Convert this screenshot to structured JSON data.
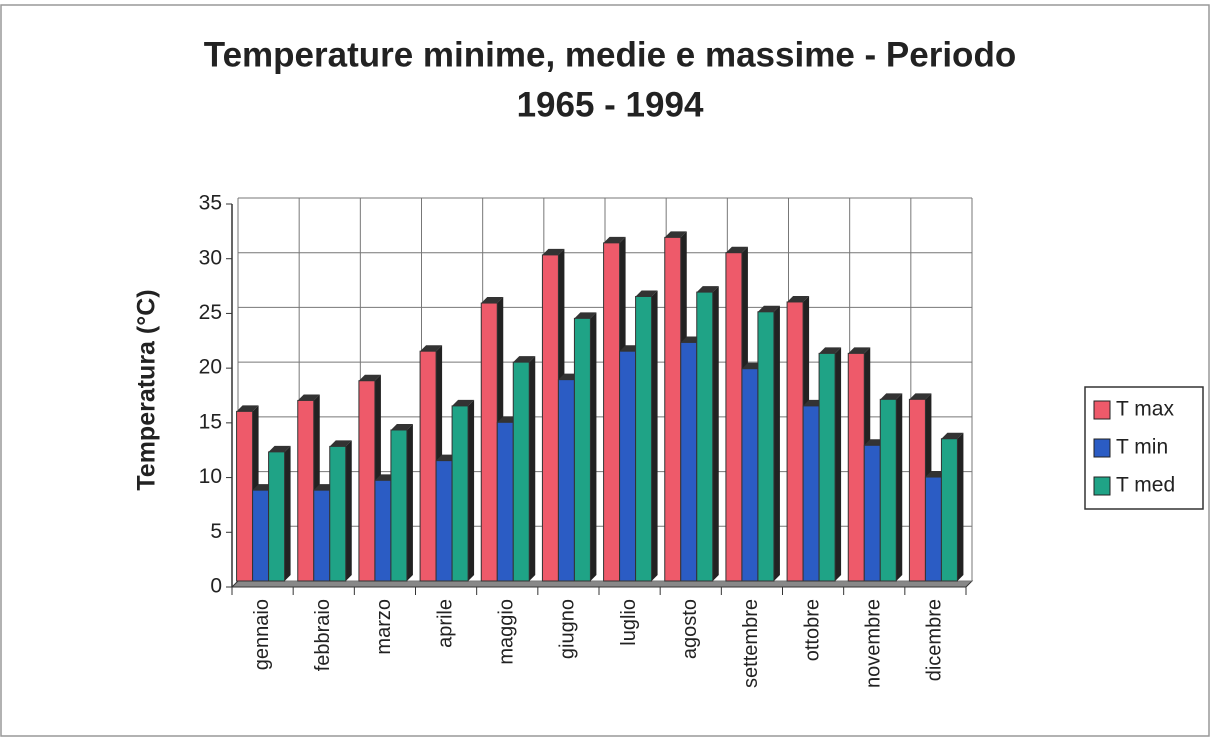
{
  "chart_data": {
    "type": "bar",
    "title": [
      "Temperature minime, medie e massime - Periodo",
      "1965 - 1994"
    ],
    "y_label": "Temperatura (°C)",
    "categories": [
      "gennaio",
      "febbraio",
      "marzo",
      "aprile",
      "maggio",
      "giugno",
      "luglio",
      "agosto",
      "settembre",
      "ottobre",
      "novembre",
      "dicembre"
    ],
    "series": [
      {
        "name": "T max",
        "color": "#ee5a6a",
        "values": [
          15.5,
          16.5,
          18.3,
          21,
          25.4,
          29.8,
          30.9,
          31.4,
          30,
          25.5,
          20.8,
          16.6
        ]
      },
      {
        "name": "T min",
        "color": "#2b5cc4",
        "values": [
          8.3,
          8.3,
          9.2,
          11,
          14.5,
          18.4,
          21,
          21.8,
          19.4,
          16,
          12.4,
          9.5
        ]
      },
      {
        "name": "T med",
        "color": "#1fa386",
        "values": [
          11.8,
          12.3,
          13.8,
          16,
          20,
          24,
          26,
          26.4,
          24.6,
          20.8,
          16.6,
          13
        ]
      }
    ],
    "ylim": [
      0,
      35
    ],
    "yticks": [
      0,
      5,
      10,
      15,
      20,
      25,
      30,
      35
    ],
    "grid": true,
    "legend": "right"
  }
}
